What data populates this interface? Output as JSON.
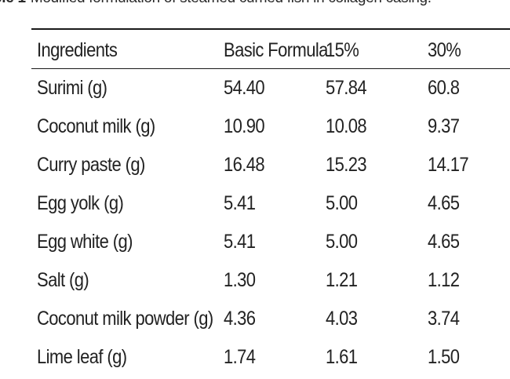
{
  "caption": {
    "label": "ble 1",
    "text": "Modified formulation of steamed curried fish in collagen casing."
  },
  "table": {
    "headers": [
      "Ingredients",
      "Basic Formula",
      "15%",
      "30%"
    ],
    "rows": [
      [
        "Surimi (g)",
        "54.40",
        "57.84",
        "60.8"
      ],
      [
        "Coconut milk (g)",
        "10.90",
        "10.08",
        "9.37"
      ],
      [
        "Curry paste (g)",
        "16.48",
        "15.23",
        "14.17"
      ],
      [
        "Egg yolk (g)",
        "5.41",
        "5.00",
        "4.65"
      ],
      [
        "Egg white (g)",
        "5.41",
        "5.00",
        "4.65"
      ],
      [
        "Salt (g)",
        "1.30",
        "1.21",
        "1.12"
      ],
      [
        "Coconut milk powder (g)",
        "4.36",
        "4.03",
        "3.74"
      ],
      [
        "Lime leaf (g)",
        "1.74",
        "1.61",
        "1.50"
      ]
    ]
  }
}
